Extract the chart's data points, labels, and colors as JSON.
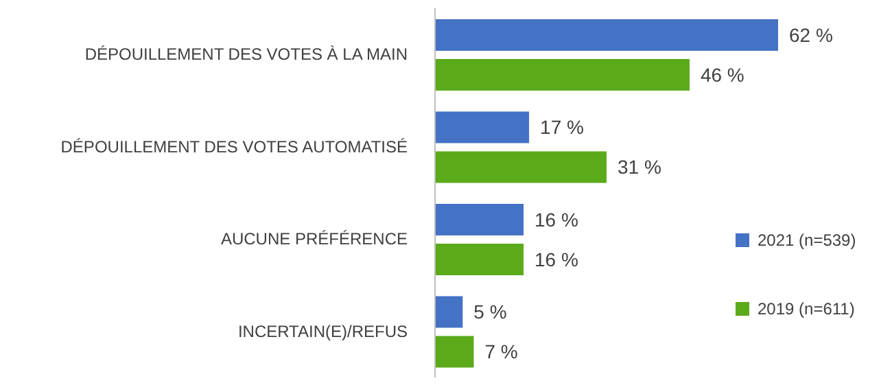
{
  "chart_data": {
    "type": "bar",
    "orientation": "horizontal",
    "categories": [
      "DÉPOUILLEMENT DES VOTES À LA MAIN",
      "DÉPOUILLEMENT DES VOTES AUTOMATISÉ",
      "AUCUNE PRÉFÉRENCE",
      "INCERTAIN(E)/REFUS"
    ],
    "series": [
      {
        "name": "2021 (n=539)",
        "color": "#4472c4",
        "values": [
          62,
          17,
          16,
          5
        ],
        "value_labels": [
          "62 %",
          "17 %",
          "16 %",
          "5 %"
        ]
      },
      {
        "name": "2019 (n=611)",
        "color": "#5aaa1a",
        "values": [
          46,
          31,
          16,
          7
        ],
        "value_labels": [
          "46 %",
          "31 %",
          "16 %",
          "7 %"
        ]
      }
    ],
    "legend": "right",
    "grid": false
  }
}
